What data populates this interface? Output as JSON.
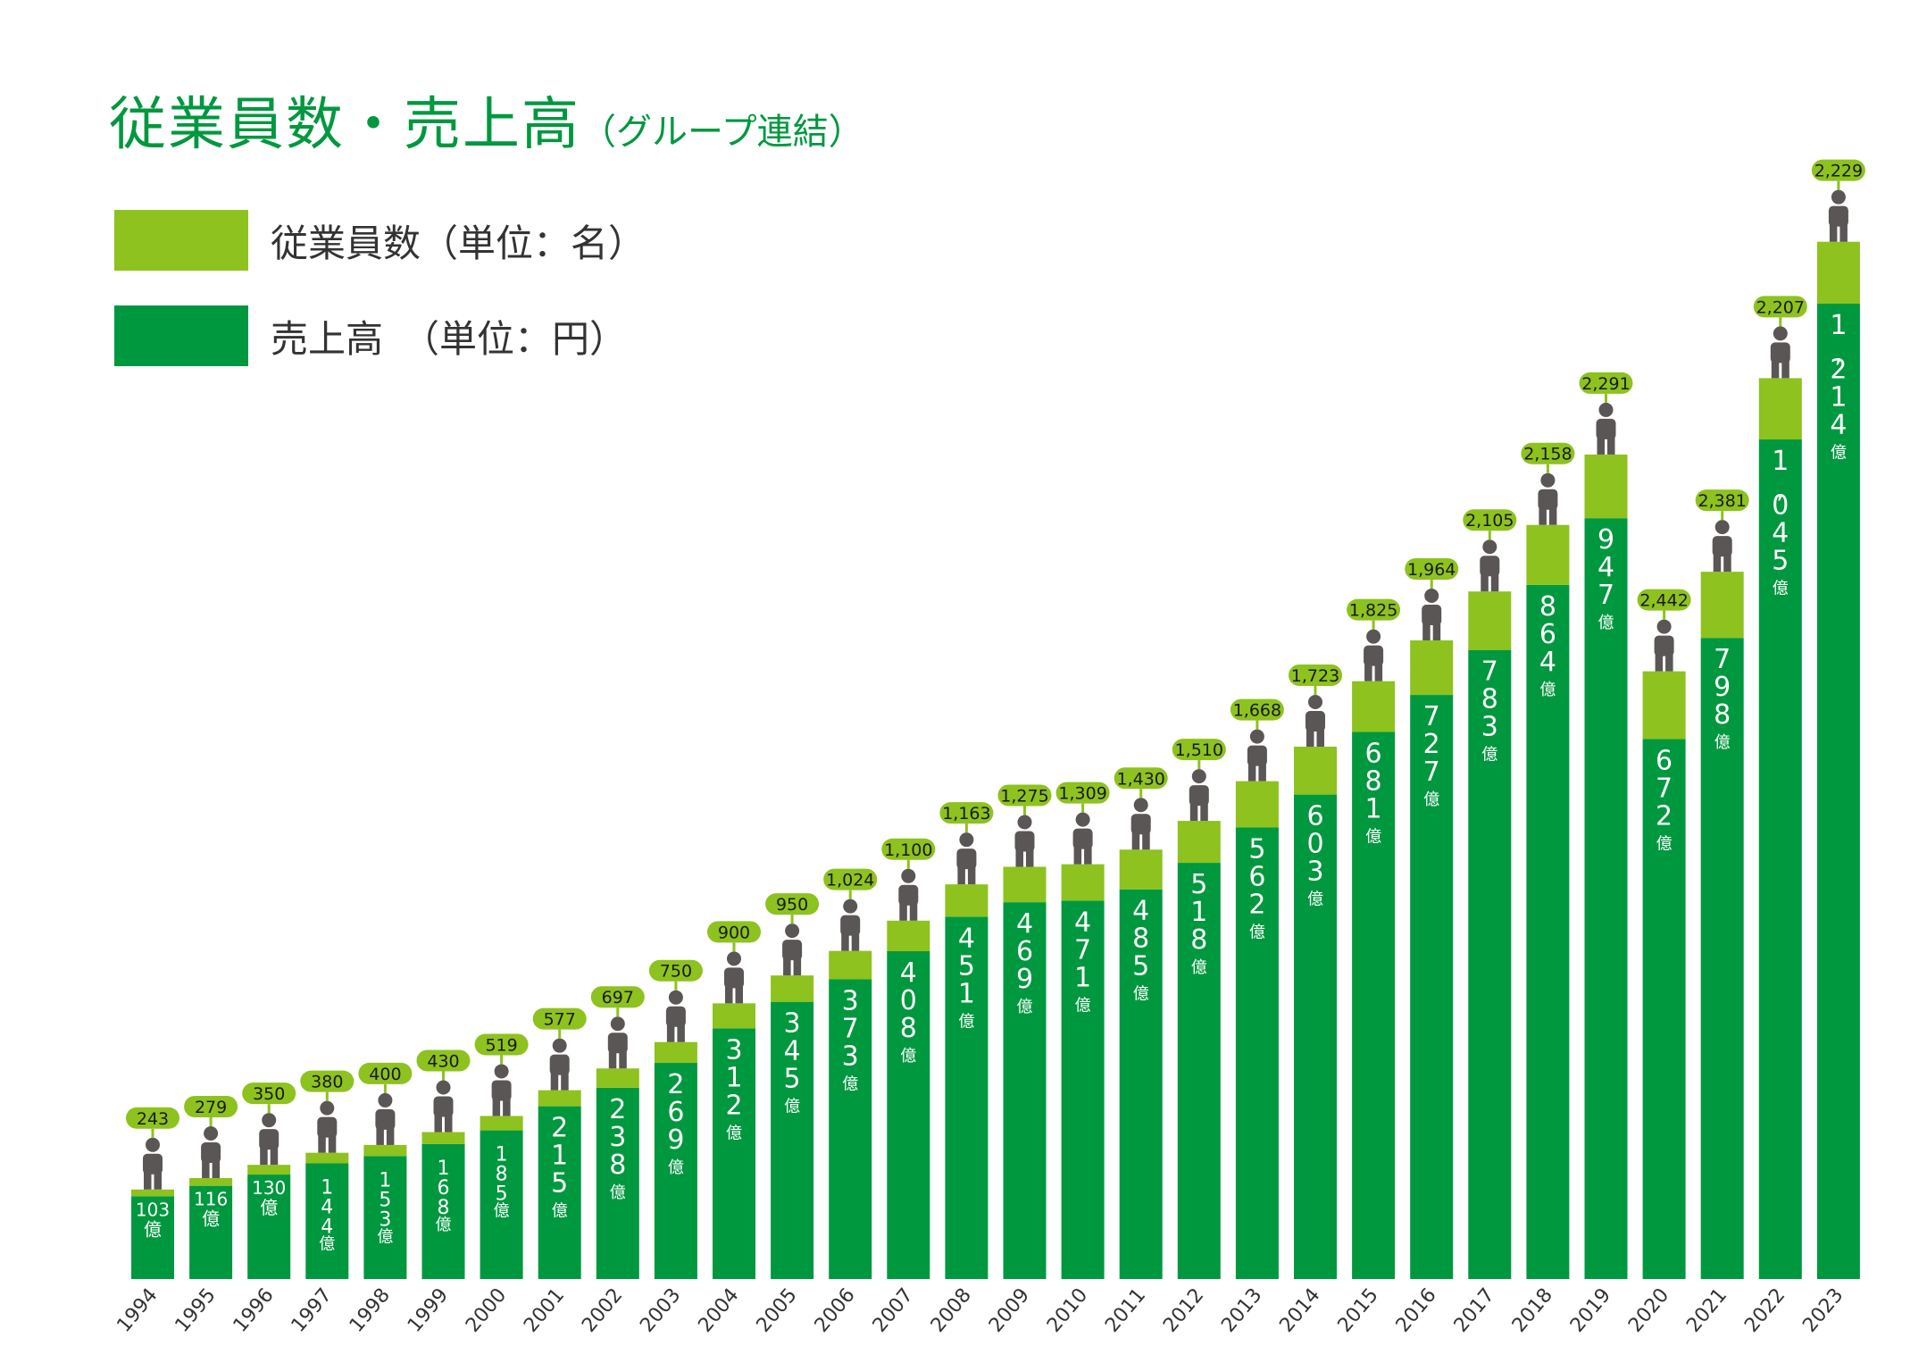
{
  "title": "従業員数・売上高",
  "title_suffix": "（グループ連結）",
  "colors": {
    "employees": "#8dc21f",
    "sales": "#00983f",
    "figure": "#5a5655",
    "text": "#333333",
    "title": "#00983f"
  },
  "legend": [
    {
      "label": "従業員数（単位：名）",
      "color": "#8dc21f"
    },
    {
      "label": "売上高　（単位：円）",
      "color": "#00983f"
    }
  ],
  "chart_data": {
    "type": "bar",
    "stacked": true,
    "categories": [
      "1994",
      "1995",
      "1996",
      "1997",
      "1998",
      "1999",
      "2000",
      "2001",
      "2002",
      "2003",
      "2004",
      "2005",
      "2006",
      "2007",
      "2008",
      "2009",
      "2010",
      "2011",
      "2012",
      "2013",
      "2014",
      "2015",
      "2016",
      "2017",
      "2018",
      "2019",
      "2020",
      "2021",
      "2022",
      "2023"
    ],
    "sales_unit": "億",
    "series": [
      {
        "name": "売上高",
        "values": [
          103,
          116,
          130,
          144,
          153,
          168,
          185,
          215,
          238,
          269,
          312,
          345,
          373,
          408,
          451,
          469,
          471,
          485,
          518,
          562,
          603,
          681,
          727,
          783,
          864,
          947,
          672,
          798,
          1045,
          1214
        ]
      },
      {
        "name": "従業員数",
        "values": [
          243,
          279,
          350,
          380,
          400,
          430,
          519,
          577,
          697,
          750,
          900,
          950,
          1024,
          1100,
          1163,
          1275,
          1309,
          1430,
          1510,
          1668,
          1723,
          1825,
          1964,
          2105,
          2158,
          2291,
          2442,
          2381,
          2207,
          2229
        ]
      }
    ],
    "sales_labels": [
      "103",
      "116",
      "130",
      "144",
      "153",
      "168",
      "185",
      "215",
      "238",
      "269",
      "312",
      "345",
      "373",
      "408",
      "451",
      "469",
      "471",
      "485",
      "518",
      "562",
      "603",
      "681",
      "727",
      "783",
      "864",
      "947",
      "672",
      "798",
      "1,045",
      "1,214"
    ],
    "employee_labels": [
      "243",
      "279",
      "350",
      "380",
      "400",
      "430",
      "519",
      "577",
      "697",
      "750",
      "900",
      "950",
      "1,024",
      "1,100",
      "1,163",
      "1,275",
      "1,309",
      "1,430",
      "1,510",
      "1,668",
      "1,723",
      "1,825",
      "1,964",
      "2,105",
      "2,158",
      "2,291",
      "2,442",
      "2,381",
      "2,207",
      "2,229"
    ],
    "xlabel": "",
    "ylabel": "",
    "grid": false,
    "legend_position": "top-left"
  }
}
